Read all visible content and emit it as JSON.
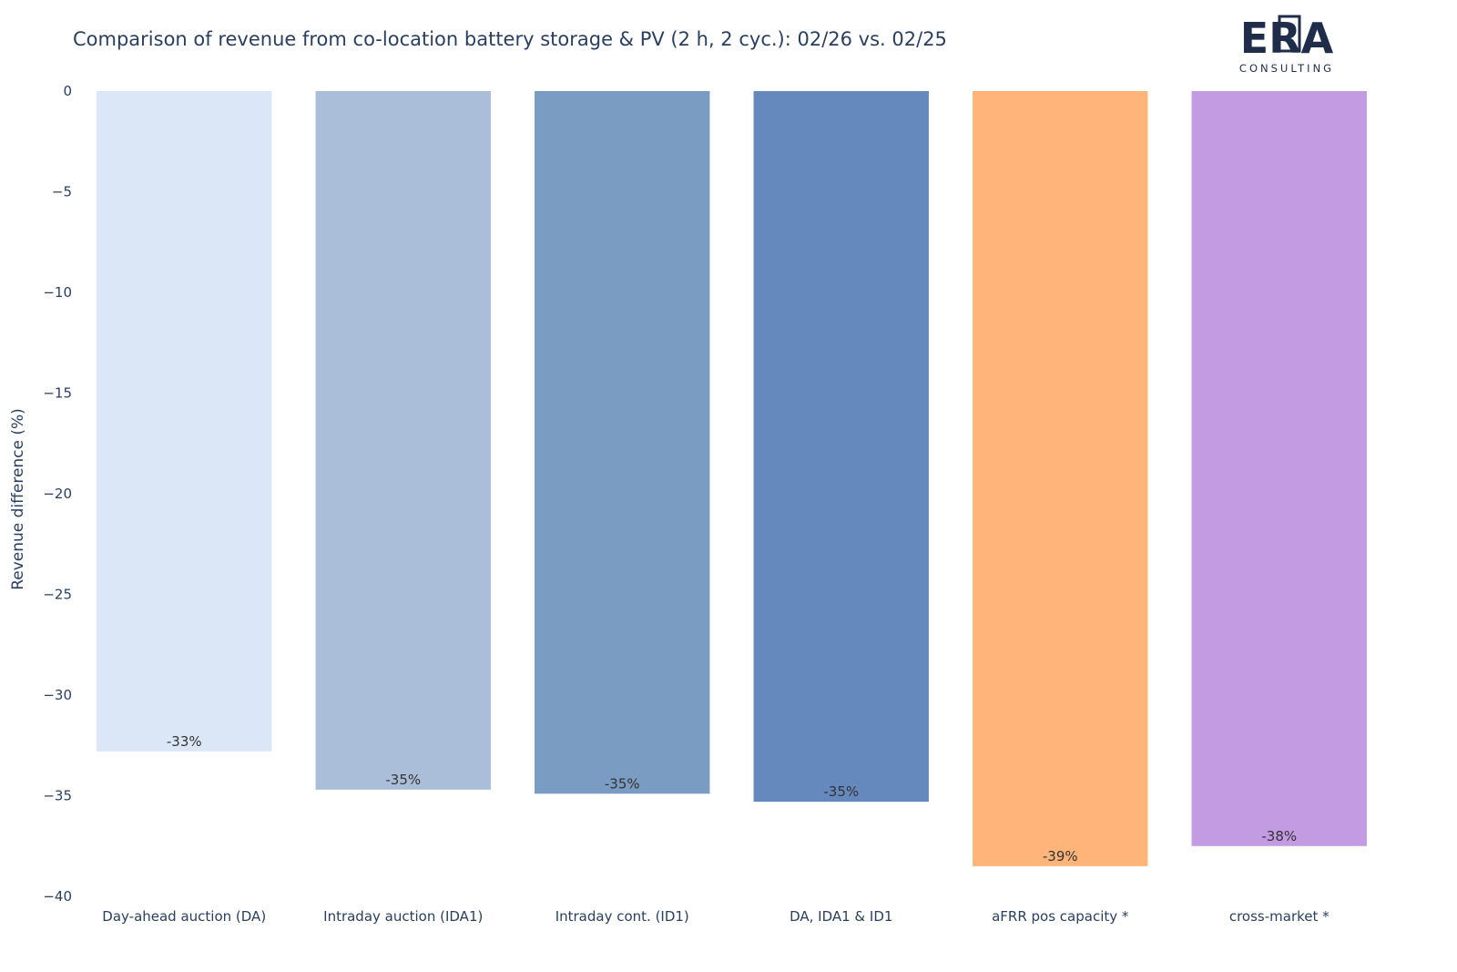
{
  "chart_data": {
    "type": "bar",
    "title": "Comparison of revenue from co-location battery storage & PV (2 h, 2 cyc.): 02/26 vs. 02/25",
    "ylabel": "Revenue difference (%)",
    "xlabel": "",
    "ylim": [
      -40,
      0
    ],
    "yticks": [
      0,
      -5,
      -10,
      -15,
      -20,
      -25,
      -30,
      -35,
      -40
    ],
    "ytick_labels": [
      "0",
      "−5",
      "−10",
      "−15",
      "−20",
      "−25",
      "−30",
      "−35",
      "−40"
    ],
    "categories": [
      "Day-ahead auction (DA)",
      "Intraday auction (IDA1)",
      "Intraday cont. (ID1)",
      "DA, IDA1 & ID1",
      "aFRR pos capacity *",
      "cross-market *"
    ],
    "values": [
      -32.8,
      -34.7,
      -34.9,
      -35.3,
      -38.5,
      -37.5
    ],
    "labels": [
      "-33%",
      "-35%",
      "-35%",
      "-35%",
      "-39%",
      "-38%"
    ],
    "colors": [
      "#dbe7f7",
      "#abbed9",
      "#7a9cc3",
      "#6588bd",
      "#ffb579",
      "#c39be3"
    ],
    "grid": false,
    "legend": "none"
  },
  "logo": {
    "main": "ERA",
    "sub": "CONSULTING"
  }
}
